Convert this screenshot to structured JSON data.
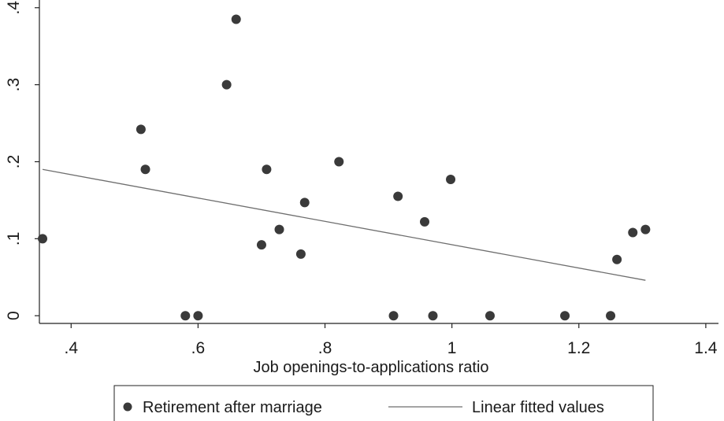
{
  "chart_data": {
    "type": "scatter",
    "title": "",
    "xlabel": "Job openings-to-applications ratio",
    "ylabel": "",
    "xlim": [
      0.35,
      1.42
    ],
    "ylim": [
      -0.01,
      0.41
    ],
    "x_ticks": [
      0.4,
      0.6,
      0.8,
      1,
      1.2,
      1.4
    ],
    "x_tick_labels": [
      ".4",
      ".6",
      ".8",
      "1",
      "1.2",
      "1.4"
    ],
    "y_ticks": [
      0,
      0.1,
      0.2,
      0.3,
      0.4
    ],
    "y_tick_labels": [
      "0",
      ".1",
      ".2",
      ".3",
      ".4"
    ],
    "grid": false,
    "legend_position": "bottom",
    "series": [
      {
        "name": "Retirement after marriage",
        "type": "scatter",
        "color": "#3a3a3a",
        "points": [
          {
            "x": 0.355,
            "y": 0.1
          },
          {
            "x": 0.51,
            "y": 0.242
          },
          {
            "x": 0.517,
            "y": 0.19
          },
          {
            "x": 0.58,
            "y": 0.0
          },
          {
            "x": 0.6,
            "y": 0.0
          },
          {
            "x": 0.645,
            "y": 0.3
          },
          {
            "x": 0.66,
            "y": 0.385
          },
          {
            "x": 0.7,
            "y": 0.092
          },
          {
            "x": 0.708,
            "y": 0.19
          },
          {
            "x": 0.728,
            "y": 0.112
          },
          {
            "x": 0.762,
            "y": 0.08
          },
          {
            "x": 0.768,
            "y": 0.147
          },
          {
            "x": 0.822,
            "y": 0.2
          },
          {
            "x": 0.908,
            "y": 0.0
          },
          {
            "x": 0.915,
            "y": 0.155
          },
          {
            "x": 0.957,
            "y": 0.122
          },
          {
            "x": 0.97,
            "y": 0.0
          },
          {
            "x": 0.998,
            "y": 0.177
          },
          {
            "x": 1.06,
            "y": 0.0
          },
          {
            "x": 1.178,
            "y": 0.0
          },
          {
            "x": 1.25,
            "y": 0.0
          },
          {
            "x": 1.26,
            "y": 0.073
          },
          {
            "x": 1.285,
            "y": 0.108
          },
          {
            "x": 1.305,
            "y": 0.112
          }
        ]
      },
      {
        "name": "Linear fitted values",
        "type": "line",
        "color": "#6e6e6e",
        "points": [
          {
            "x": 0.355,
            "y": 0.19
          },
          {
            "x": 1.305,
            "y": 0.046
          }
        ]
      }
    ]
  }
}
